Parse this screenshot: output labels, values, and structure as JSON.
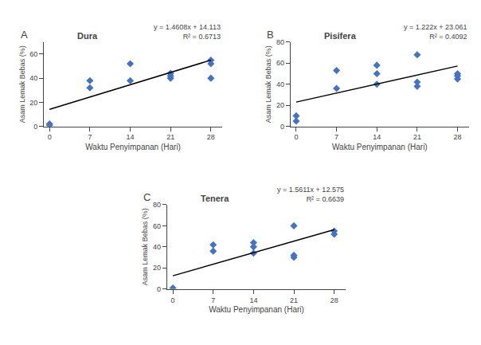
{
  "chart_data": [
    {
      "type": "scatter",
      "title": "Dura",
      "annotations": [
        "A",
        "y = 1.4608x + 14.113",
        "R² = 0.6713"
      ],
      "xlabel": "Waktu Penyimpanan (Hari)",
      "ylabel": "Asam Lemak Bebas (%)",
      "series": [
        {
          "type": "scatter",
          "marker": "diamond",
          "color": "#4472C4",
          "x": [
            0,
            0,
            7,
            7,
            14,
            14,
            21,
            21,
            21,
            28,
            28,
            28
          ],
          "values": [
            1,
            2,
            32,
            38,
            38,
            52,
            40,
            44,
            42,
            55,
            52,
            40
          ]
        },
        {
          "type": "line",
          "line_style": "solid",
          "color": "black",
          "x": [
            0,
            28
          ],
          "values": [
            14.113,
            55.0154
          ]
        }
      ],
      "xlim": [
        -1,
        30
      ],
      "xticks": [
        0,
        7,
        14,
        21,
        28
      ],
      "ylim": [
        0,
        70
      ],
      "yticks": [
        0,
        20,
        40,
        60
      ],
      "grid": false
    },
    {
      "type": "scatter",
      "title": "Pisifera",
      "annotations": [
        "B",
        "y = 1.222x + 23.061",
        "R² = 0.4092"
      ],
      "xlabel": "Waktu Penyimpanan (Hari)",
      "ylabel": "Asam Lemak Bebas (%)",
      "series": [
        {
          "type": "scatter",
          "marker": "diamond",
          "color": "#4472C4",
          "x": [
            0,
            0,
            7,
            7,
            14,
            14,
            14,
            21,
            21,
            21,
            28,
            28,
            28
          ],
          "values": [
            5,
            10,
            36,
            53,
            40,
            50,
            58,
            38,
            42,
            68,
            45,
            48,
            50
          ]
        },
        {
          "type": "line",
          "line_style": "solid",
          "color": "black",
          "x": [
            0,
            28
          ],
          "values": [
            23.061,
            57.277
          ]
        }
      ],
      "xlim": [
        -1,
        30
      ],
      "xticks": [
        0,
        7,
        14,
        21,
        28
      ],
      "ylim": [
        0,
        80
      ],
      "yticks": [
        0,
        20,
        40,
        60,
        80
      ],
      "grid": false
    },
    {
      "type": "scatter",
      "title": "Tenera",
      "annotations": [
        "C",
        "y = 1.5611x + 12.575",
        "R² = 0.6639"
      ],
      "xlabel": "Waktu Penyimpanan (Hari)",
      "ylabel": "Asam Lemak Bebas (%)",
      "series": [
        {
          "type": "scatter",
          "marker": "diamond",
          "color": "#4472C4",
          "x": [
            0,
            7,
            7,
            14,
            14,
            14,
            21,
            21,
            21,
            28,
            28
          ],
          "values": [
            1,
            36,
            42,
            34,
            40,
            44,
            30,
            32,
            60,
            52,
            55
          ]
        },
        {
          "type": "line",
          "line_style": "solid",
          "color": "black",
          "x": [
            0,
            28
          ],
          "values": [
            12.575,
            56.2858
          ]
        }
      ],
      "xlim": [
        -1,
        30
      ],
      "xticks": [
        0,
        7,
        14,
        21,
        28
      ],
      "ylim": [
        0,
        80
      ],
      "yticks": [
        0,
        20,
        40,
        60,
        80
      ],
      "grid": false
    }
  ]
}
